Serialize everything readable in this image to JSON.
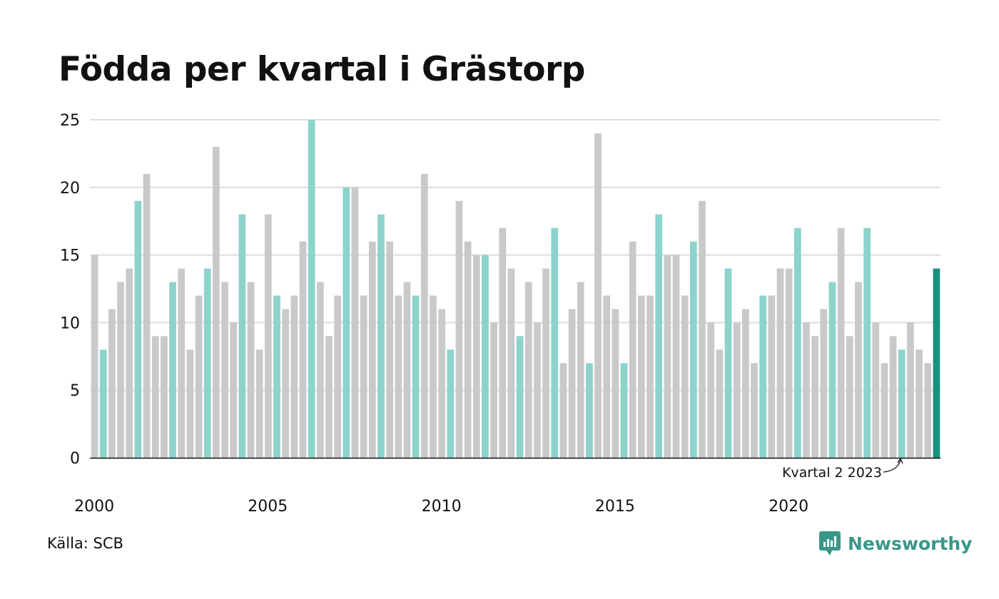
{
  "title": "Födda per kvartal i Grästorp",
  "source": "Källa: SCB",
  "brand": "Newsworthy",
  "colors": {
    "q2": "#8cd3cc",
    "other": "#c9c9c9",
    "latest": "#16917f",
    "grid": "#dddddd",
    "axis": "#111111",
    "brand": "#3a9688"
  },
  "chart_data": {
    "type": "bar",
    "title": "Födda per kvartal i Grästorp",
    "xlabel": "",
    "ylabel": "",
    "ylim": [
      0,
      25
    ],
    "yticks": [
      0,
      5,
      10,
      15,
      20,
      25
    ],
    "xticks": [
      "2000",
      "2005",
      "2010",
      "2015",
      "2020"
    ],
    "grid": true,
    "annotation": "Kvartal 2 2023",
    "categories": [
      "2000 K1",
      "2000 K2",
      "2000 K3",
      "2000 K4",
      "2001 K1",
      "2001 K2",
      "2001 K3",
      "2001 K4",
      "2002 K1",
      "2002 K2",
      "2002 K3",
      "2002 K4",
      "2003 K1",
      "2003 K2",
      "2003 K3",
      "2003 K4",
      "2004 K1",
      "2004 K2",
      "2004 K3",
      "2004 K4",
      "2005 K1",
      "2005 K2",
      "2005 K3",
      "2005 K4",
      "2006 K1",
      "2006 K2",
      "2006 K3",
      "2006 K4",
      "2007 K1",
      "2007 K2",
      "2007 K3",
      "2007 K4",
      "2008 K1",
      "2008 K2",
      "2008 K3",
      "2008 K4",
      "2009 K1",
      "2009 K2",
      "2009 K3",
      "2009 K4",
      "2010 K1",
      "2010 K2",
      "2010 K3",
      "2010 K4",
      "2011 K1",
      "2011 K2",
      "2011 K3",
      "2011 K4",
      "2012 K1",
      "2012 K2",
      "2012 K3",
      "2012 K4",
      "2013 K1",
      "2013 K2",
      "2013 K3",
      "2013 K4",
      "2014 K1",
      "2014 K2",
      "2014 K3",
      "2014 K4",
      "2015 K1",
      "2015 K2",
      "2015 K3",
      "2015 K4",
      "2016 K1",
      "2016 K2",
      "2016 K3",
      "2016 K4",
      "2017 K1",
      "2017 K2",
      "2017 K3",
      "2017 K4",
      "2018 K1",
      "2018 K2",
      "2018 K3",
      "2018 K4",
      "2019 K1",
      "2019 K2",
      "2019 K3",
      "2019 K4",
      "2020 K1",
      "2020 K2",
      "2020 K3",
      "2020 K4",
      "2021 K1",
      "2021 K2",
      "2021 K3",
      "2021 K4",
      "2022 K1",
      "2022 K2",
      "2022 K3",
      "2022 K4",
      "2023 K1",
      "2023 K2",
      "2023 K3",
      "2023 K4",
      "2024 K1",
      "2024 K2"
    ],
    "values": [
      15,
      8,
      11,
      13,
      14,
      19,
      21,
      9,
      9,
      13,
      14,
      8,
      12,
      14,
      23,
      13,
      10,
      18,
      13,
      8,
      18,
      12,
      11,
      12,
      16,
      25,
      13,
      9,
      12,
      20,
      20,
      12,
      16,
      18,
      16,
      12,
      13,
      12,
      21,
      12,
      11,
      8,
      19,
      16,
      15,
      15,
      10,
      17,
      14,
      9,
      13,
      10,
      14,
      17,
      7,
      11,
      13,
      7,
      24,
      12,
      11,
      7,
      16,
      12,
      12,
      18,
      15,
      15,
      12,
      16,
      19,
      10,
      8,
      14,
      10,
      11,
      7,
      12,
      12,
      14,
      14,
      17,
      10,
      9,
      11,
      13,
      17,
      9,
      13,
      17,
      10,
      7,
      9,
      8,
      10,
      8,
      7,
      14
    ]
  }
}
